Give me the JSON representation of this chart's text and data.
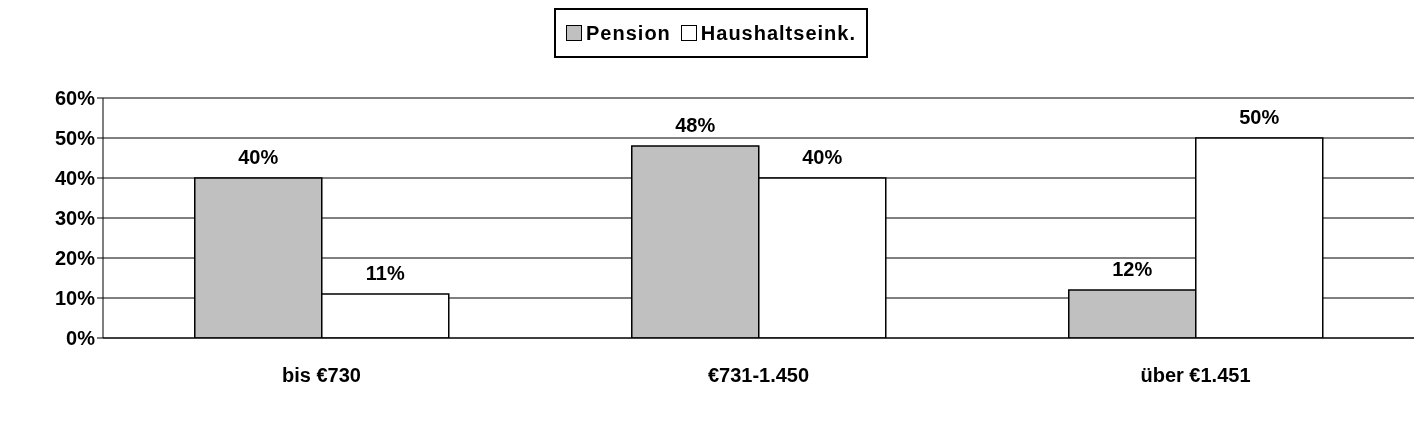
{
  "chart_data": {
    "type": "bar",
    "categories": [
      "bis €730",
      "€731-1.450",
      "über €1.451"
    ],
    "series": [
      {
        "name": "Pension",
        "color": "#c0c0c0",
        "values": [
          40,
          48,
          12
        ],
        "value_labels": [
          "40%",
          "48%",
          "12%"
        ]
      },
      {
        "name": "Haushaltseink.",
        "color": "#ffffff",
        "values": [
          11,
          40,
          50
        ],
        "value_labels": [
          "11%",
          "40%",
          "50%"
        ]
      }
    ],
    "ylim": [
      0,
      60
    ],
    "yticks": [
      {
        "value": 0,
        "label": "0%"
      },
      {
        "value": 10,
        "label": "10%"
      },
      {
        "value": 20,
        "label": "20%"
      },
      {
        "value": 30,
        "label": "30%"
      },
      {
        "value": 40,
        "label": "40%"
      },
      {
        "value": 50,
        "label": "50%"
      },
      {
        "value": 60,
        "label": "60%"
      }
    ],
    "grid": "y",
    "legend": "top"
  }
}
